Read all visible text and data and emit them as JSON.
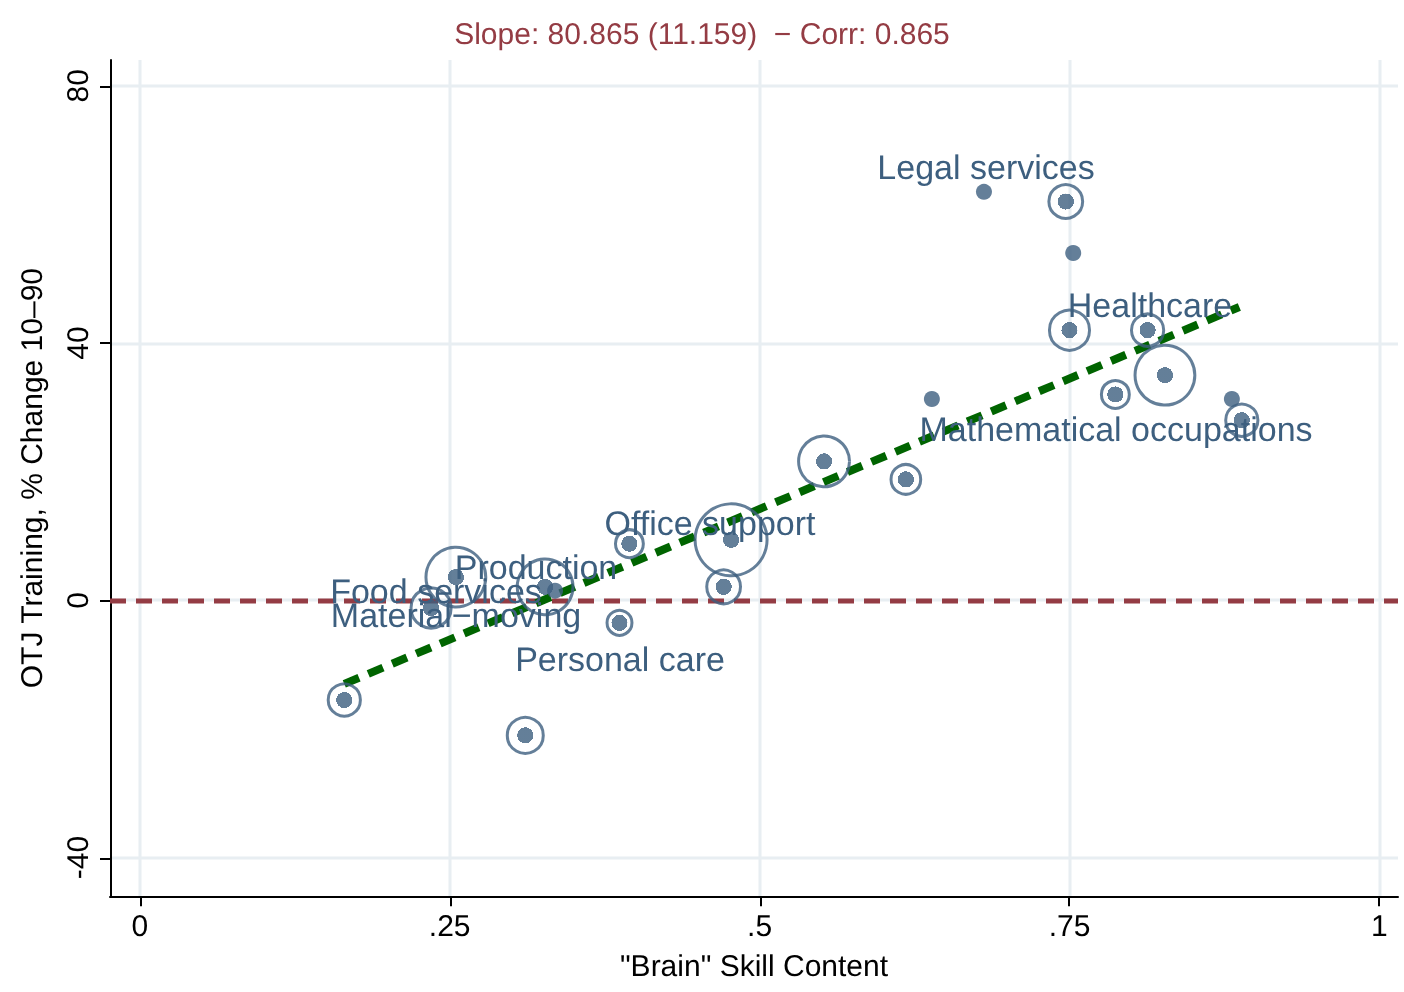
{
  "chart_data": {
    "type": "scatter",
    "title": "Slope: 80.865 (11.159)  − Corr: 0.865",
    "xlabel": "\"Brain\" Skill Content",
    "ylabel": "OTJ Training, % Change 10–90",
    "xlim": [
      -0.024,
      1.015
    ],
    "ylim": [
      -46,
      84
    ],
    "xticks": [
      {
        "value": 0,
        "label": "0"
      },
      {
        "value": 0.25,
        "label": ".25"
      },
      {
        "value": 0.5,
        "label": ".5"
      },
      {
        "value": 0.75,
        "label": ".75"
      },
      {
        "value": 1,
        "label": "1"
      }
    ],
    "yticks": [
      -40,
      0,
      40,
      80
    ],
    "grid": true,
    "marker": "circle",
    "series": [
      {
        "color": "#3d5f7f",
        "x": [
          0.335,
          0.639,
          0.681,
          0.753,
          0.881
        ],
        "values": [
          1.5,
          31.3,
          63.5,
          54,
          31.3
        ]
      },
      {
        "type": "bubble",
        "color": "#3d5f7f",
        "x": [
          0.165,
          0.311,
          0.235,
          0.255,
          0.327,
          0.387,
          0.395,
          0.471,
          0.477,
          0.552,
          0.618,
          0.747,
          0.75,
          0.813,
          0.827,
          0.787,
          0.889
        ],
        "values": [
          -15.5,
          -21,
          -1.2,
          3.6,
          2.1,
          -3.5,
          8.8,
          2.1,
          9.4,
          21.6,
          18.8,
          62,
          42,
          42,
          35,
          32,
          28
        ],
        "sizes": [
          0.2,
          0.25,
          0.31,
          0.69,
          0.6,
          0.12,
          0.15,
          0.22,
          1,
          0.5,
          0.17,
          0.22,
          0.31,
          0.2,
          0.69,
          0.15,
          0.2
        ]
      },
      {
        "type": "line",
        "color": "#006400",
        "line_style": "dashed",
        "marker": "none",
        "x": [
          0.165,
          0.887
        ],
        "values": [
          -13,
          45.6
        ]
      }
    ],
    "ref_lines": [
      {
        "axis": "y",
        "value": 0,
        "color": "#943c44",
        "line_style": "dashed"
      }
    ],
    "annotations": [
      "Legal services",
      "Healthcare",
      "Mathematical occupations",
      "Office support",
      "Production",
      "Food services",
      "Material−moving",
      "Personal care"
    ]
  }
}
